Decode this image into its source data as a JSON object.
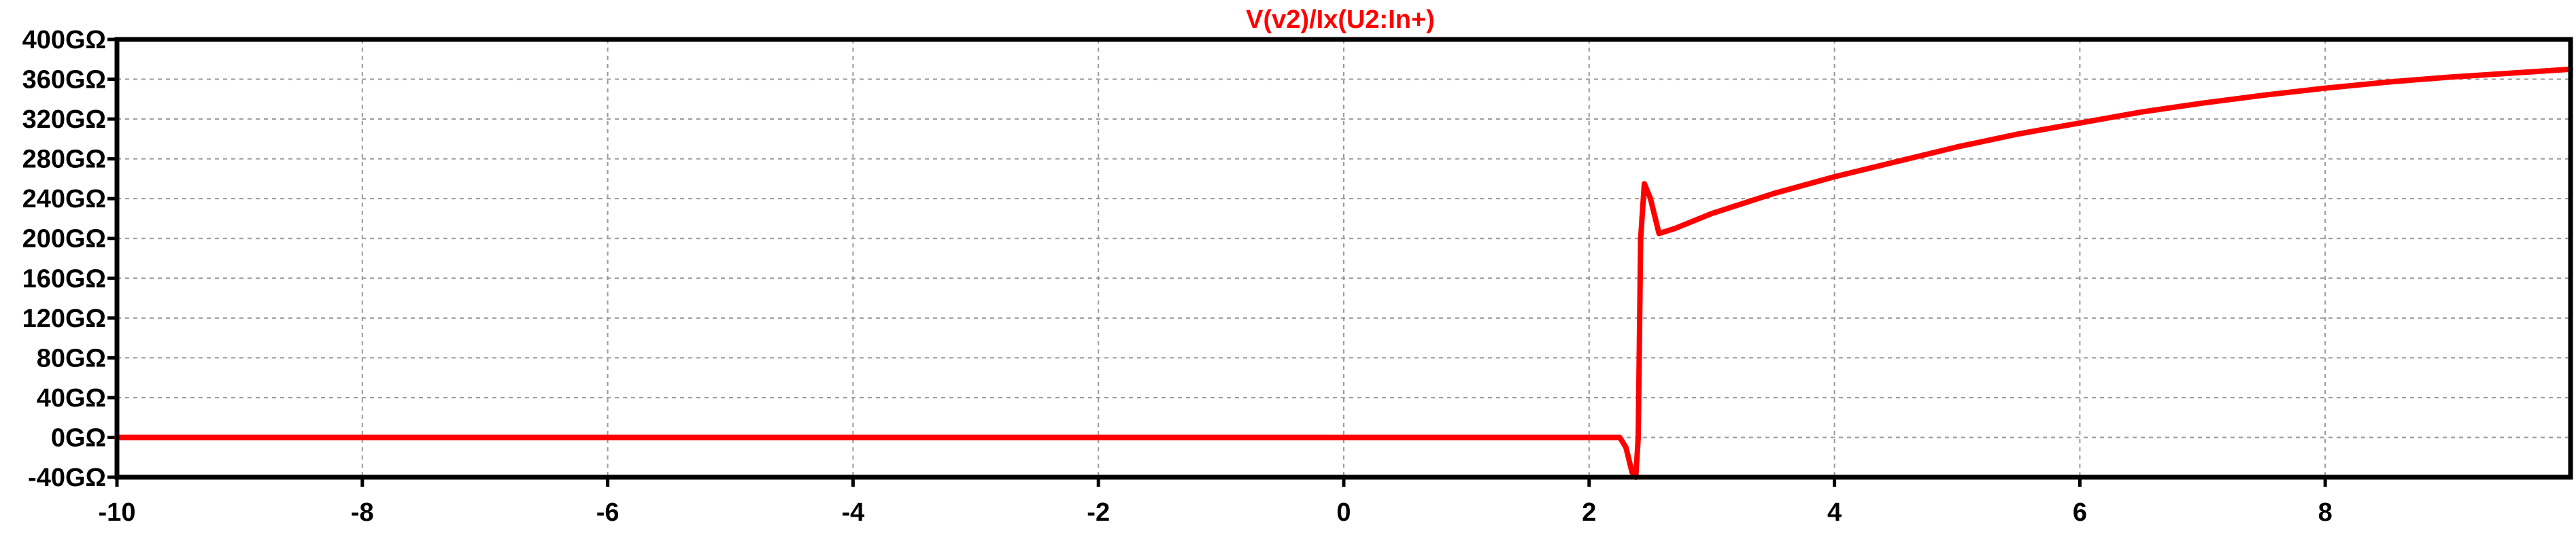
{
  "chart_data": {
    "type": "line",
    "title": "V(v2)/Ix(U2:In+)",
    "xlabel": "",
    "ylabel": "",
    "xlim": [
      -10,
      10
    ],
    "ylim": [
      -40,
      400
    ],
    "x_ticks": [
      -10,
      -8,
      -6,
      -4,
      -2,
      0,
      2,
      4,
      6,
      8
    ],
    "x_tick_labels": [
      "-10",
      "-8",
      "-6",
      "-4",
      "-2",
      "0",
      "2",
      "4",
      "6",
      "8"
    ],
    "y_ticks": [
      400,
      360,
      320,
      280,
      240,
      200,
      160,
      120,
      80,
      40,
      0,
      -40
    ],
    "y_tick_labels": [
      "400GΩ",
      "360GΩ",
      "320GΩ",
      "280GΩ",
      "240GΩ",
      "200GΩ",
      "160GΩ",
      "120GΩ",
      "80GΩ",
      "40GΩ",
      "0GΩ",
      "-40GΩ"
    ],
    "grid": true,
    "colors": {
      "series": "#ff0000",
      "title": "#ff0000",
      "axes": "#000000",
      "grid": "#999999"
    },
    "series": [
      {
        "x": [
          -10,
          -8,
          -6,
          -4,
          -2,
          0,
          2,
          2.25,
          2.3,
          2.35,
          2.38,
          2.4,
          2.42,
          2.45,
          2.5,
          2.57,
          2.7,
          3,
          3.5,
          4,
          4.5,
          5,
          5.5,
          6,
          6.5,
          7,
          7.5,
          8,
          8.5,
          9,
          9.5,
          10
        ],
        "y": [
          0,
          0,
          0,
          0,
          0,
          0,
          0,
          0,
          -10,
          -35,
          -40,
          0,
          200,
          255,
          240,
          205,
          210,
          225,
          245,
          262,
          277,
          292,
          305,
          316,
          327,
          336,
          344,
          351,
          357,
          362,
          366,
          370
        ]
      }
    ]
  }
}
